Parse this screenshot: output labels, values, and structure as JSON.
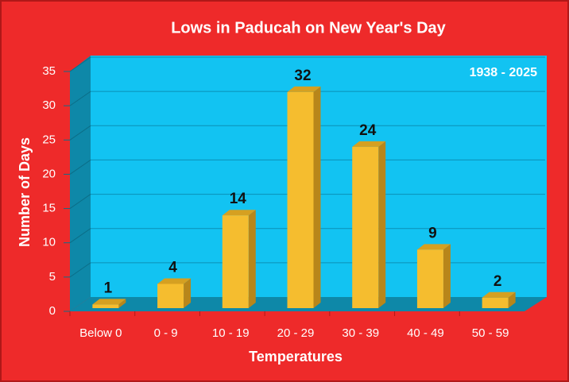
{
  "chart_data": {
    "type": "bar3d",
    "title": "Lows in Paducah on New Year's Day",
    "annotation": "1938 - 2025",
    "x_label": "Temperatures",
    "y_label": "Number of Days",
    "categories": [
      "Below 0",
      "0 - 9",
      "10 - 19",
      "20 - 29",
      "30 - 39",
      "40 - 49",
      "50 - 59"
    ],
    "values": [
      1,
      4,
      14,
      32,
      24,
      9,
      2
    ],
    "color": "#f5bd2f",
    "ylim": [
      0,
      35
    ],
    "yticks": [
      0,
      5,
      10,
      15,
      20,
      25,
      30,
      35
    ],
    "grid": true
  }
}
